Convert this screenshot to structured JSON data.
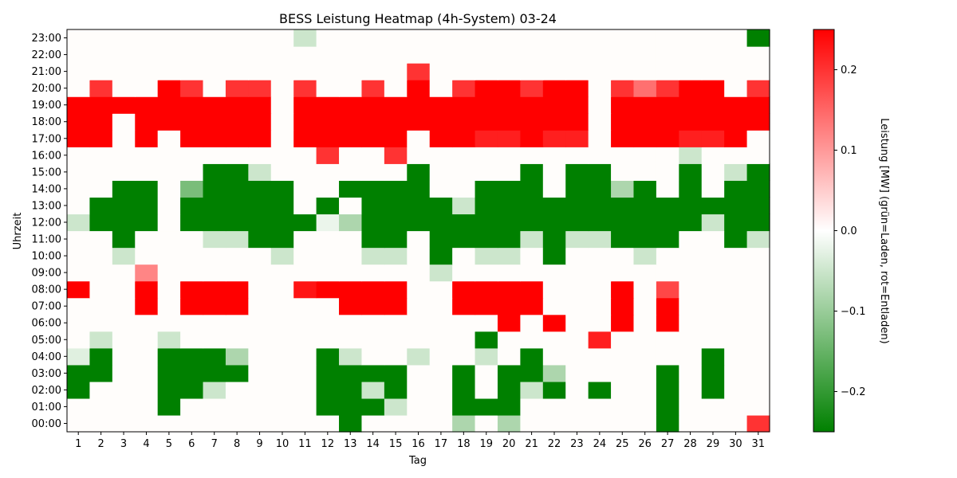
{
  "chart_data": {
    "type": "heatmap",
    "title": "BESS Leistung Heatmap (4h-System) 03-24",
    "xlabel": "Tag",
    "ylabel": "Uhrzeit",
    "colorbar_label": "Leistung [MW] (grün=Laden, rot=Entladen)",
    "colorbar_ticks": [
      -0.2,
      -0.1,
      0.0,
      0.1,
      0.2
    ],
    "colorbar_tick_labels": [
      "−0.2",
      "−0.1",
      "0.0",
      "0.1",
      "0.2"
    ],
    "vmin": -0.25,
    "vmax": 0.25,
    "colors": {
      "low": "#008000",
      "mid": "#ffffff",
      "high": "#ff0000",
      "empty": "#fffdfb"
    },
    "x": [
      1,
      2,
      3,
      4,
      5,
      6,
      7,
      8,
      9,
      10,
      11,
      12,
      13,
      14,
      15,
      16,
      17,
      18,
      19,
      20,
      21,
      22,
      23,
      24,
      25,
      26,
      27,
      28,
      29,
      30,
      31
    ],
    "x_tick_labels": [
      "1",
      "2",
      "3",
      "4",
      "5",
      "6",
      "7",
      "8",
      "9",
      "10",
      "11",
      "12",
      "13",
      "14",
      "15",
      "16",
      "17",
      "18",
      "19",
      "20",
      "21",
      "22",
      "23",
      "24",
      "25",
      "26",
      "27",
      "28",
      "29",
      "30",
      "31"
    ],
    "y_tick_labels": [
      "00:00",
      "01:00",
      "02:00",
      "03:00",
      "04:00",
      "05:00",
      "06:00",
      "07:00",
      "08:00",
      "09:00",
      "10:00",
      "11:00",
      "12:00",
      "13:00",
      "14:00",
      "15:00",
      "16:00",
      "17:00",
      "18:00",
      "19:00",
      "20:00",
      "21:00",
      "22:00",
      "23:00"
    ],
    "values": [
      [
        0,
        0,
        0,
        0,
        0,
        0,
        0,
        0,
        0,
        0,
        0,
        0,
        -0.25,
        0,
        0,
        0,
        0,
        -0.08,
        0,
        -0.08,
        0,
        0,
        0,
        0,
        0,
        0,
        -0.25,
        0,
        0,
        0,
        0.2
      ],
      [
        0,
        0,
        0,
        0,
        -0.25,
        0,
        0,
        0,
        0,
        0,
        0,
        -0.25,
        -0.25,
        -0.25,
        -0.05,
        0,
        0,
        -0.25,
        -0.25,
        -0.25,
        0,
        0,
        0,
        0,
        0,
        0,
        -0.25,
        0,
        0,
        0,
        0
      ],
      [
        -0.25,
        0,
        0,
        0,
        -0.25,
        -0.25,
        -0.05,
        0,
        0,
        0,
        0,
        -0.25,
        -0.25,
        -0.05,
        -0.25,
        0,
        0,
        -0.25,
        0,
        -0.25,
        -0.05,
        -0.25,
        0,
        -0.25,
        0,
        0,
        -0.25,
        0,
        -0.25,
        0,
        0
      ],
      [
        -0.25,
        -0.25,
        0,
        0,
        -0.25,
        -0.25,
        -0.25,
        -0.25,
        0,
        0,
        0,
        -0.25,
        -0.25,
        -0.25,
        -0.25,
        0,
        0,
        -0.25,
        0,
        -0.25,
        -0.25,
        -0.08,
        0,
        0,
        0,
        0,
        -0.25,
        0,
        -0.25,
        0,
        0
      ],
      [
        -0.03,
        -0.25,
        0,
        0,
        -0.25,
        -0.25,
        -0.25,
        -0.08,
        0,
        0,
        0,
        -0.25,
        -0.05,
        0,
        0,
        -0.05,
        0,
        0,
        -0.05,
        0,
        -0.25,
        0,
        0,
        0,
        0,
        0,
        0,
        0,
        -0.25,
        0,
        0
      ],
      [
        0,
        -0.05,
        0,
        0,
        -0.05,
        0,
        0,
        0,
        0,
        0,
        0,
        0,
        0,
        0,
        0,
        0,
        0,
        0,
        -0.25,
        0,
        0,
        0,
        0,
        0.22,
        0,
        0,
        0,
        0,
        0,
        0,
        0
      ],
      [
        0,
        0,
        0,
        0,
        0,
        0,
        0,
        0,
        0,
        0,
        0,
        0,
        0,
        0,
        0,
        0,
        0,
        0,
        0,
        0.25,
        0,
        0.25,
        0,
        0,
        0.25,
        0,
        0.25,
        0,
        0,
        0,
        0
      ],
      [
        0,
        0,
        0,
        0.25,
        0,
        0.25,
        0.25,
        0.25,
        0,
        0,
        0,
        0,
        0.25,
        0.25,
        0.25,
        0,
        0,
        0.25,
        0.25,
        0.25,
        0.25,
        0,
        0,
        0,
        0.25,
        0,
        0.25,
        0,
        0,
        0,
        0
      ],
      [
        0.25,
        0,
        0,
        0.25,
        0,
        0.25,
        0.25,
        0.25,
        0,
        0,
        0.23,
        0.25,
        0.25,
        0.25,
        0.25,
        0,
        0,
        0.25,
        0.25,
        0.25,
        0.25,
        0,
        0,
        0,
        0.25,
        0,
        0.18,
        0,
        0,
        0,
        0
      ],
      [
        0,
        0,
        0,
        0.12,
        0,
        0,
        0,
        0,
        0,
        0,
        0,
        0,
        0,
        0,
        0,
        0,
        -0.05,
        0,
        0,
        0,
        0,
        0,
        0,
        0,
        0,
        0,
        0,
        0,
        0,
        0,
        0
      ],
      [
        0,
        0,
        -0.05,
        0,
        0,
        0,
        0,
        0,
        0,
        -0.05,
        0,
        0,
        0,
        -0.05,
        -0.05,
        0,
        -0.25,
        0,
        -0.05,
        -0.05,
        0,
        -0.25,
        0,
        0,
        0,
        -0.05,
        0,
        0,
        0,
        0,
        0
      ],
      [
        0,
        0,
        -0.25,
        0,
        0,
        0,
        -0.05,
        -0.05,
        -0.25,
        -0.25,
        0,
        0,
        0,
        -0.25,
        -0.25,
        0,
        -0.25,
        -0.25,
        -0.25,
        -0.25,
        -0.05,
        -0.25,
        -0.05,
        -0.05,
        -0.25,
        -0.25,
        -0.25,
        0,
        0,
        -0.25,
        -0.05
      ],
      [
        -0.05,
        -0.25,
        -0.25,
        -0.25,
        0,
        -0.25,
        -0.25,
        -0.25,
        -0.25,
        -0.25,
        -0.25,
        -0.02,
        -0.08,
        -0.25,
        -0.25,
        -0.25,
        -0.25,
        -0.25,
        -0.25,
        -0.25,
        -0.25,
        -0.25,
        -0.25,
        -0.25,
        -0.25,
        -0.25,
        -0.25,
        -0.25,
        -0.05,
        -0.25,
        -0.25
      ],
      [
        0,
        -0.25,
        -0.25,
        -0.25,
        0,
        -0.25,
        -0.25,
        -0.25,
        -0.25,
        -0.25,
        0,
        -0.25,
        0,
        -0.25,
        -0.25,
        -0.25,
        -0.25,
        -0.05,
        -0.25,
        -0.25,
        -0.25,
        -0.25,
        -0.25,
        -0.25,
        -0.25,
        -0.25,
        -0.25,
        -0.25,
        -0.25,
        -0.25,
        -0.25
      ],
      [
        0,
        0,
        -0.25,
        -0.25,
        0,
        -0.13,
        -0.25,
        -0.25,
        -0.25,
        -0.25,
        0,
        0,
        -0.25,
        -0.25,
        -0.25,
        -0.25,
        0,
        0,
        -0.25,
        -0.25,
        -0.25,
        0,
        -0.25,
        -0.25,
        -0.08,
        -0.25,
        0,
        -0.25,
        0,
        -0.25,
        -0.25
      ],
      [
        0,
        0,
        0,
        0,
        0,
        0,
        -0.25,
        -0.25,
        -0.05,
        0,
        0,
        0,
        0,
        0,
        0,
        -0.25,
        0,
        0,
        0,
        0,
        -0.25,
        0,
        -0.25,
        -0.25,
        0,
        0,
        0,
        -0.25,
        0,
        -0.05,
        -0.25
      ],
      [
        0,
        0,
        0,
        0,
        0,
        0,
        0,
        0,
        0,
        0,
        0,
        0.2,
        0,
        0,
        0.2,
        0,
        0,
        0,
        0,
        0,
        0,
        0,
        0,
        0,
        0,
        0,
        0,
        -0.05,
        0,
        0,
        0
      ],
      [
        0.25,
        0.25,
        0,
        0.25,
        0,
        0.25,
        0.25,
        0.25,
        0.25,
        0,
        0.25,
        0.25,
        0.25,
        0.25,
        0.25,
        0,
        0.25,
        0.25,
        0.22,
        0.22,
        0.25,
        0.22,
        0.22,
        0,
        0.25,
        0.25,
        0.25,
        0.22,
        0.22,
        0.25,
        0
      ],
      [
        0.25,
        0.25,
        0,
        0.25,
        0.25,
        0.25,
        0.25,
        0.25,
        0.25,
        0,
        0.25,
        0.25,
        0.25,
        0.25,
        0.25,
        0.25,
        0.25,
        0.25,
        0.25,
        0.25,
        0.25,
        0.25,
        0.25,
        0,
        0.25,
        0.25,
        0.25,
        0.25,
        0.25,
        0.25,
        0.25
      ],
      [
        0.25,
        0.25,
        0.25,
        0.25,
        0.25,
        0.25,
        0.25,
        0.25,
        0.25,
        0,
        0.25,
        0.25,
        0.25,
        0.25,
        0.25,
        0.25,
        0.25,
        0.25,
        0.25,
        0.25,
        0.25,
        0.25,
        0.25,
        0,
        0.25,
        0.25,
        0.25,
        0.25,
        0.25,
        0.25,
        0.25
      ],
      [
        0,
        0.2,
        0,
        0,
        0.25,
        0.2,
        0,
        0.2,
        0.2,
        0,
        0.2,
        0,
        0,
        0.2,
        0,
        0.25,
        0,
        0.2,
        0.25,
        0.25,
        0.2,
        0.25,
        0.25,
        0,
        0.2,
        0.14,
        0.2,
        0.25,
        0.25,
        0,
        0.2
      ],
      [
        0,
        0,
        0,
        0,
        0,
        0,
        0,
        0,
        0,
        0,
        0,
        0,
        0,
        0,
        0,
        0.2,
        0,
        0,
        0,
        0,
        0,
        0,
        0,
        0,
        0,
        0,
        0,
        0,
        0,
        0,
        0
      ],
      [
        0,
        0,
        0,
        0,
        0,
        0,
        0,
        0,
        0,
        0,
        0,
        0,
        0,
        0,
        0,
        0,
        0,
        0,
        0,
        0,
        0,
        0,
        0,
        0,
        0,
        0,
        0,
        0,
        0,
        0,
        0
      ],
      [
        0,
        0,
        0,
        0,
        0,
        0,
        0,
        0,
        0,
        0,
        -0.05,
        0,
        0,
        0,
        0,
        0,
        0,
        0,
        0,
        0,
        0,
        0,
        0,
        0,
        0,
        0,
        0,
        0,
        0,
        0,
        -0.25
      ]
    ]
  }
}
